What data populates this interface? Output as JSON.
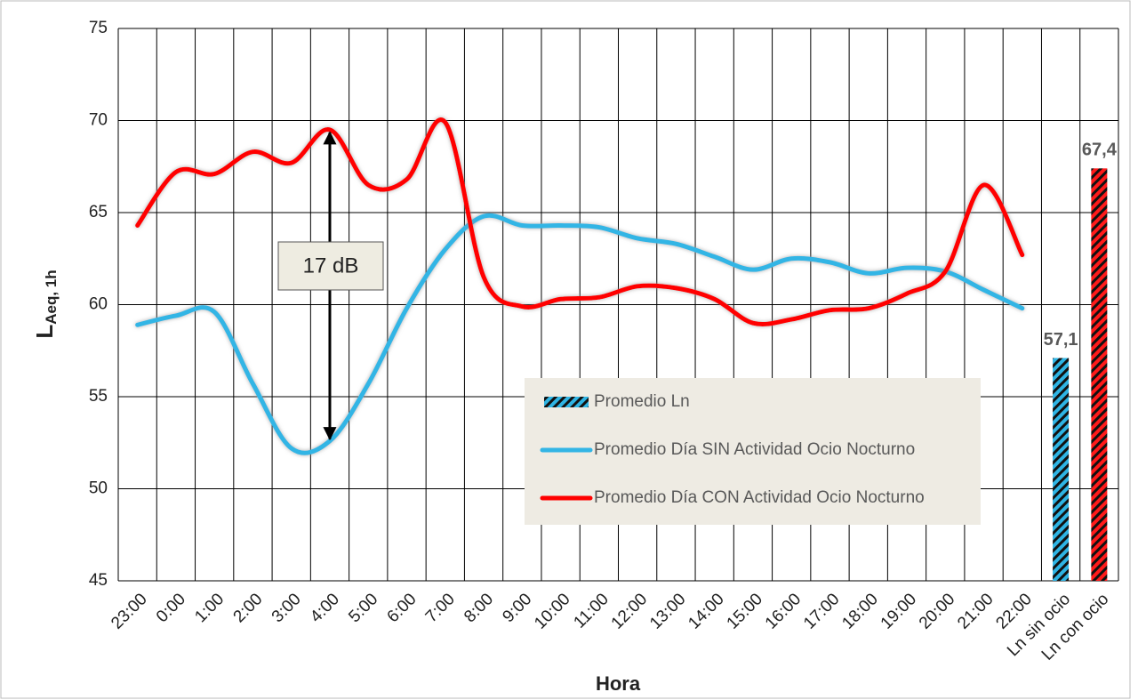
{
  "chart_data": {
    "type": "combo",
    "x_label": "Hora",
    "y_label": "L",
    "y_label_sub": "Aeq, 1h",
    "annotation": "17 dB",
    "categories": [
      "23:00",
      "0:00",
      "1:00",
      "2:00",
      "3:00",
      "4:00",
      "5:00",
      "6:00",
      "7:00",
      "8:00",
      "9:00",
      "10:00",
      "11:00",
      "12:00",
      "13:00",
      "14:00",
      "15:00",
      "16:00",
      "17:00",
      "18:00",
      "19:00",
      "20:00",
      "21:00",
      "22:00",
      "Ln sin ocio",
      "Ln con ocio"
    ],
    "ylim": [
      45,
      75
    ],
    "yticks": [
      45,
      50,
      55,
      60,
      65,
      70,
      75
    ],
    "grid": true,
    "legend": "lower-right",
    "series": [
      {
        "name": "Promedio Ln",
        "type": "bar",
        "color": "#2eb4e4",
        "colors": [
          null,
          null,
          null,
          null,
          null,
          null,
          null,
          null,
          null,
          null,
          null,
          null,
          null,
          null,
          null,
          null,
          null,
          null,
          null,
          null,
          null,
          null,
          null,
          null,
          "#2eb4e4",
          "#ff1a1a"
        ],
        "values": [
          null,
          null,
          null,
          null,
          null,
          null,
          null,
          null,
          null,
          null,
          null,
          null,
          null,
          null,
          null,
          null,
          null,
          null,
          null,
          null,
          null,
          null,
          null,
          null,
          57.1,
          67.4
        ],
        "value_labels": [
          null,
          null,
          null,
          null,
          null,
          null,
          null,
          null,
          null,
          null,
          null,
          null,
          null,
          null,
          null,
          null,
          null,
          null,
          null,
          null,
          null,
          null,
          null,
          null,
          "57,1",
          "67,4"
        ]
      },
      {
        "name": "Promedio Día SIN Actividad Ocio Nocturno",
        "type": "line",
        "color": "#33b5e5",
        "values": [
          58.9,
          59.4,
          59.6,
          55.7,
          52.2,
          52.6,
          55.7,
          59.8,
          63.0,
          64.8,
          64.3,
          64.3,
          64.2,
          63.6,
          63.3,
          62.6,
          61.9,
          62.5,
          62.3,
          61.7,
          62.0,
          61.8,
          60.8,
          59.8,
          null,
          null
        ]
      },
      {
        "name": "Promedio Día CON Actividad Ocio Nocturno",
        "type": "line",
        "color": "#ff0000",
        "values": [
          64.3,
          67.2,
          67.1,
          68.3,
          67.7,
          69.5,
          66.5,
          66.8,
          69.9,
          61.5,
          59.9,
          60.3,
          60.4,
          61.0,
          60.9,
          60.3,
          59.0,
          59.2,
          59.7,
          59.8,
          60.6,
          61.8,
          66.5,
          62.7,
          null,
          null
        ]
      }
    ]
  }
}
